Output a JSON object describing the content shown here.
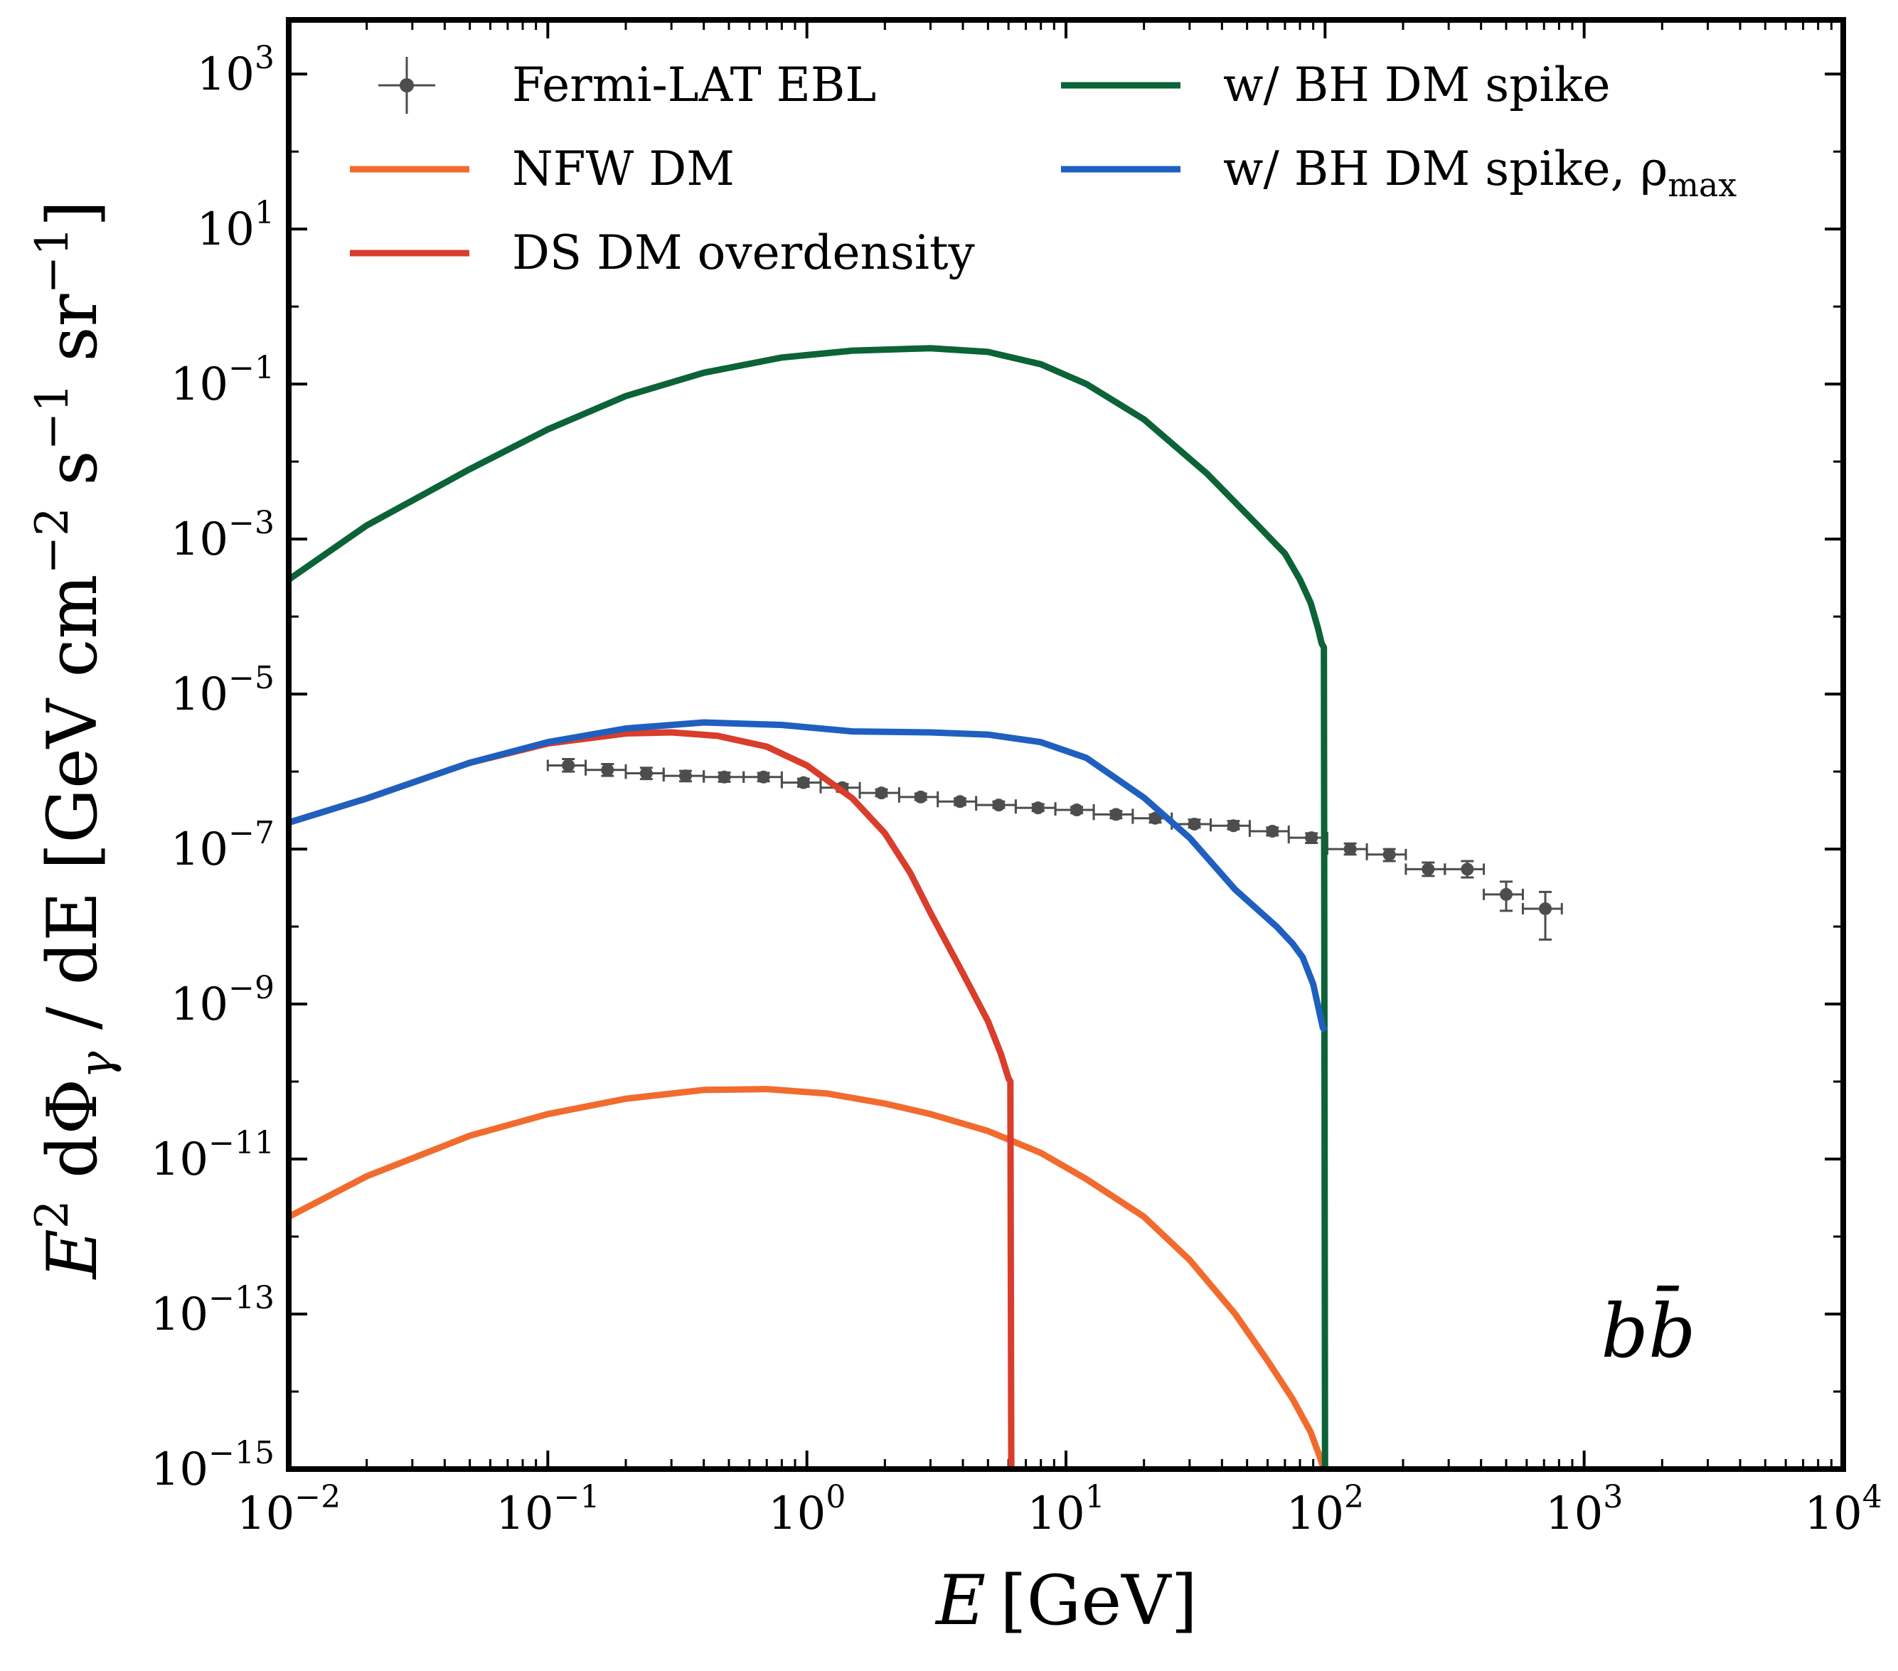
{
  "chart_data": {
    "type": "line",
    "title": "",
    "xlabel": "E [GeV]",
    "ylabel": "E² dΦγ / dE [GeV cm⁻² s⁻¹ sr⁻¹]",
    "xscale": "log",
    "yscale": "log",
    "xlim": [
      0.01,
      10000
    ],
    "ylim": [
      1e-15,
      5000
    ],
    "x_ticks": [
      {
        "value": 0.01,
        "base": "10",
        "exp": "−2"
      },
      {
        "value": 0.1,
        "base": "10",
        "exp": "−1"
      },
      {
        "value": 1,
        "base": "10",
        "exp": "0"
      },
      {
        "value": 10,
        "base": "10",
        "exp": "1"
      },
      {
        "value": 100,
        "base": "10",
        "exp": "2"
      },
      {
        "value": 1000,
        "base": "10",
        "exp": "3"
      },
      {
        "value": 10000,
        "base": "10",
        "exp": "4"
      }
    ],
    "y_ticks": [
      {
        "value": 1000.0,
        "base": "10",
        "exp": "3"
      },
      {
        "value": 10.0,
        "base": "10",
        "exp": "1"
      },
      {
        "value": 0.1,
        "base": "10",
        "exp": "−1"
      },
      {
        "value": 0.001,
        "base": "10",
        "exp": "−3"
      },
      {
        "value": 1e-05,
        "base": "10",
        "exp": "−5"
      },
      {
        "value": 1e-07,
        "base": "10",
        "exp": "−7"
      },
      {
        "value": 1e-09,
        "base": "10",
        "exp": "−9"
      },
      {
        "value": 1e-11,
        "base": "10",
        "exp": "−11"
      },
      {
        "value": 1e-13,
        "base": "10",
        "exp": "−13"
      },
      {
        "value": 1e-15,
        "base": "10",
        "exp": "−15"
      }
    ],
    "legend_position": "top",
    "annotation": "bb̄",
    "series": [
      {
        "name": "Fermi-LAT EBL",
        "kind": "errorbar",
        "color": "#4d4d4d",
        "points": [
          {
            "x": 0.12,
            "y": 1.2e-06,
            "xlo": 0.1,
            "xhi": 0.14,
            "ylo": 1e-06,
            "yhi": 1.45e-06
          },
          {
            "x": 0.17,
            "y": 1.05e-06,
            "xlo": 0.14,
            "xhi": 0.2,
            "ylo": 8.8e-07,
            "yhi": 1.25e-06
          },
          {
            "x": 0.24,
            "y": 9.5e-07,
            "xlo": 0.2,
            "xhi": 0.28,
            "ylo": 8e-07,
            "yhi": 1.12e-06
          },
          {
            "x": 0.34,
            "y": 8.8e-07,
            "xlo": 0.28,
            "xhi": 0.4,
            "ylo": 7.5e-07,
            "yhi": 1.02e-06
          },
          {
            "x": 0.48,
            "y": 8.5e-07,
            "xlo": 0.4,
            "xhi": 0.57,
            "ylo": 7.4e-07,
            "yhi": 9.7e-07
          },
          {
            "x": 0.68,
            "y": 8.5e-07,
            "xlo": 0.57,
            "xhi": 0.8,
            "ylo": 7.5e-07,
            "yhi": 9.6e-07
          },
          {
            "x": 0.97,
            "y": 7.2e-07,
            "xlo": 0.8,
            "xhi": 1.13,
            "ylo": 6.4e-07,
            "yhi": 8.1e-07
          },
          {
            "x": 1.37,
            "y": 6.2e-07,
            "xlo": 1.13,
            "xhi": 1.6,
            "ylo": 5.5e-07,
            "yhi": 6.9e-07
          },
          {
            "x": 1.94,
            "y": 5.3e-07,
            "xlo": 1.6,
            "xhi": 2.27,
            "ylo": 4.8e-07,
            "yhi": 5.9e-07
          },
          {
            "x": 2.75,
            "y": 4.7e-07,
            "xlo": 2.27,
            "xhi": 3.2,
            "ylo": 4.3e-07,
            "yhi": 5.2e-07
          },
          {
            "x": 3.9,
            "y": 4.1e-07,
            "xlo": 3.2,
            "xhi": 4.5,
            "ylo": 3.7e-07,
            "yhi": 4.5e-07
          },
          {
            "x": 5.5,
            "y": 3.7e-07,
            "xlo": 4.5,
            "xhi": 6.4,
            "ylo": 3.4e-07,
            "yhi": 4.1e-07
          },
          {
            "x": 7.8,
            "y": 3.4e-07,
            "xlo": 6.4,
            "xhi": 9.1,
            "ylo": 3.1e-07,
            "yhi": 3.8e-07
          },
          {
            "x": 11.0,
            "y": 3.2e-07,
            "xlo": 9.1,
            "xhi": 12.8,
            "ylo": 2.9e-07,
            "yhi": 3.5e-07
          },
          {
            "x": 15.6,
            "y": 2.8e-07,
            "xlo": 12.8,
            "xhi": 18.1,
            "ylo": 2.5e-07,
            "yhi": 3.1e-07
          },
          {
            "x": 22.1,
            "y": 2.5e-07,
            "xlo": 18.1,
            "xhi": 25.6,
            "ylo": 2.2e-07,
            "yhi": 2.8e-07
          },
          {
            "x": 31.3,
            "y": 2.1e-07,
            "xlo": 25.6,
            "xhi": 36.2,
            "ylo": 1.9e-07,
            "yhi": 2.4e-07
          },
          {
            "x": 44.3,
            "y": 2e-07,
            "xlo": 36.2,
            "xhi": 51.2,
            "ylo": 1.8e-07,
            "yhi": 2.3e-07
          },
          {
            "x": 62.6,
            "y": 1.7e-07,
            "xlo": 51.2,
            "xhi": 72.4,
            "ylo": 1.5e-07,
            "yhi": 1.9e-07
          },
          {
            "x": 88.6,
            "y": 1.4e-07,
            "xlo": 72.4,
            "xhi": 102,
            "ylo": 1.2e-07,
            "yhi": 1.6e-07
          },
          {
            "x": 125,
            "y": 1e-07,
            "xlo": 102,
            "xhi": 145,
            "ylo": 8.5e-08,
            "yhi": 1.18e-07
          },
          {
            "x": 177,
            "y": 8.5e-08,
            "xlo": 145,
            "xhi": 205,
            "ylo": 7e-08,
            "yhi": 1e-07
          },
          {
            "x": 250,
            "y": 5.5e-08,
            "xlo": 205,
            "xhi": 290,
            "ylo": 4.5e-08,
            "yhi": 6.7e-08
          },
          {
            "x": 354,
            "y": 5.5e-08,
            "xlo": 290,
            "xhi": 410,
            "ylo": 4.3e-08,
            "yhi": 7e-08
          },
          {
            "x": 500,
            "y": 2.6e-08,
            "xlo": 410,
            "xhi": 580,
            "ylo": 1.6e-08,
            "yhi": 3.8e-08
          },
          {
            "x": 708,
            "y": 1.7e-08,
            "xlo": 580,
            "xhi": 820,
            "ylo": 6.8e-09,
            "yhi": 2.8e-08
          }
        ]
      },
      {
        "name": "NFW DM",
        "kind": "line",
        "color": "#f26b2e",
        "x": [
          0.01,
          0.02,
          0.05,
          0.1,
          0.2,
          0.4,
          0.7,
          1.2,
          2,
          3,
          5,
          8,
          12,
          20,
          30,
          45,
          60,
          75,
          88,
          95,
          98,
          100
        ],
        "y": [
          1.8e-12,
          6e-12,
          2e-11,
          3.8e-11,
          6e-11,
          7.8e-11,
          8e-11,
          7e-11,
          5.2e-11,
          3.8e-11,
          2.3e-11,
          1.2e-11,
          5.5e-12,
          1.8e-12,
          5e-13,
          1e-13,
          2.5e-14,
          8e-15,
          3e-15,
          1.5e-15,
          1.1e-15,
          1e-15
        ]
      },
      {
        "name": "DS DM overdensity",
        "kind": "line",
        "color": "#d93d2b",
        "x": [
          0.01,
          0.02,
          0.05,
          0.1,
          0.2,
          0.3,
          0.45,
          0.7,
          1.0,
          1.5,
          2,
          2.5,
          3,
          4,
          5,
          5.6,
          6.0,
          6.1,
          6.15
        ],
        "y": [
          2.2e-07,
          4.5e-07,
          1.3e-06,
          2.3e-06,
          3.1e-06,
          3.2e-06,
          2.9e-06,
          2.1e-06,
          1.2e-06,
          4.5e-07,
          1.6e-07,
          5e-08,
          1.5e-08,
          2.5e-09,
          6e-10,
          2.3e-10,
          1.1e-10,
          1e-10,
          1e-15
        ]
      },
      {
        "name": "w/ BH DM spike",
        "kind": "line",
        "color": "#0b6337",
        "x": [
          0.01,
          0.02,
          0.05,
          0.1,
          0.2,
          0.4,
          0.8,
          1.5,
          3,
          5,
          8,
          12,
          20,
          35,
          55,
          70,
          80,
          88,
          94,
          97,
          99,
          100
        ],
        "y": [
          0.0003,
          0.0015,
          0.008,
          0.026,
          0.07,
          0.14,
          0.22,
          0.27,
          0.29,
          0.26,
          0.18,
          0.1,
          0.035,
          0.007,
          0.0015,
          0.00065,
          0.0003,
          0.00015,
          7e-05,
          4.5e-05,
          4e-05,
          1e-15
        ]
      },
      {
        "name": "w/ BH DM spike, ρmax",
        "kind": "line",
        "color": "#1f5fbf",
        "x": [
          0.01,
          0.02,
          0.05,
          0.1,
          0.2,
          0.4,
          0.8,
          1.5,
          3,
          5,
          8,
          12,
          20,
          30,
          45,
          65,
          75,
          82,
          90,
          95,
          98,
          100
        ],
        "y": [
          2.2e-07,
          4.5e-07,
          1.3e-06,
          2.4e-06,
          3.6e-06,
          4.3e-06,
          4e-06,
          3.3e-06,
          3.2e-06,
          3e-06,
          2.4e-06,
          1.5e-06,
          4.6e-07,
          1.4e-07,
          3e-08,
          1e-08,
          6e-09,
          4e-09,
          1.8e-09,
          8e-10,
          5e-10,
          4.5e-10
        ]
      }
    ]
  },
  "legend": {
    "items": [
      {
        "label": "Fermi-LAT EBL",
        "color": "#4d4d4d",
        "kind": "errorbar"
      },
      {
        "label": "NFW DM",
        "color": "#f26b2e",
        "kind": "line"
      },
      {
        "label": "DS DM overdensity",
        "color": "#d93d2b",
        "kind": "line"
      },
      {
        "label": "w/ BH DM spike",
        "color": "#0b6337",
        "kind": "line"
      },
      {
        "label": "w/ BH DM spike, ρ",
        "sub": "max",
        "color": "#1f5fbf",
        "kind": "line"
      }
    ]
  },
  "axes": {
    "x_title": "E",
    "x_unit": "[GeV]",
    "y_title_parts": [
      "E",
      "2",
      " dΦ",
      "γ",
      " / dE [GeV cm",
      "−2",
      " s",
      "−1",
      " sr",
      "−1",
      "]"
    ]
  }
}
